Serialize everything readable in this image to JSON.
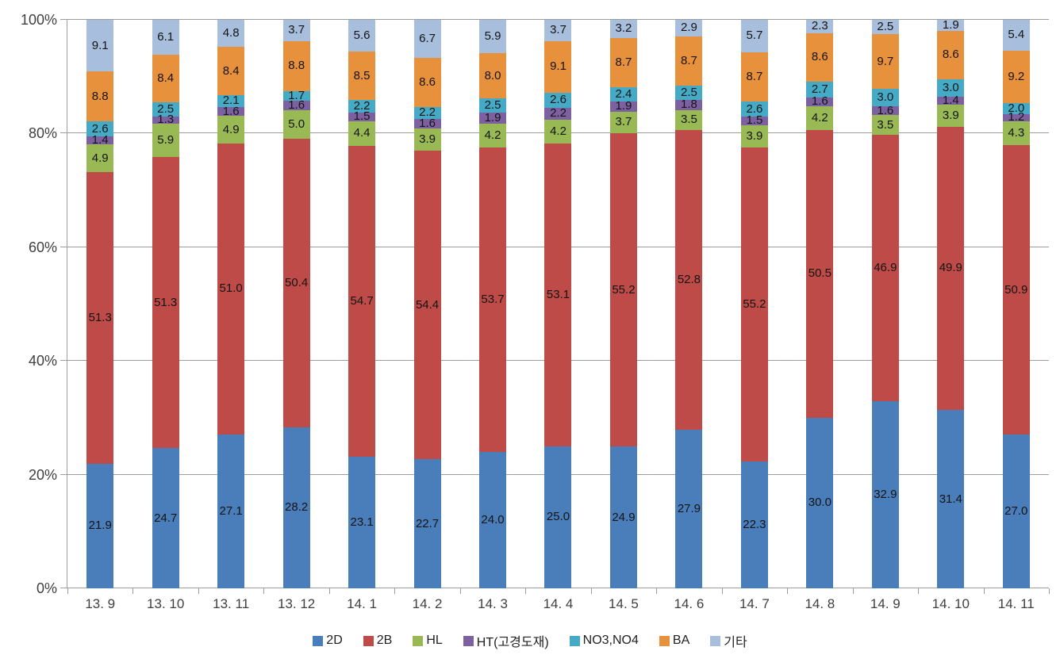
{
  "chart_data": {
    "type": "bar",
    "variant": "stacked-100-percent",
    "title": "",
    "xlabel": "",
    "ylabel": "",
    "ylim": [
      0,
      100
    ],
    "grid": true,
    "legend_position": "bottom",
    "colors": {
      "axis_line": "#9c9c9c",
      "axis_text": "#3f3f3f",
      "data_label_text": "#141414"
    },
    "y_axis_ticks": [
      {
        "label": "0%",
        "value": 0
      },
      {
        "label": "20%",
        "value": 20
      },
      {
        "label": "40%",
        "value": 40
      },
      {
        "label": "60%",
        "value": 60
      },
      {
        "label": "80%",
        "value": 80
      },
      {
        "label": "100%",
        "value": 100
      }
    ],
    "categories": [
      "13. 9",
      "13. 10",
      "13. 11",
      "13. 12",
      "14. 1",
      "14. 2",
      "14. 3",
      "14. 4",
      "14. 5",
      "14. 6",
      "14. 7",
      "14. 8",
      "14. 9",
      "14. 10",
      "14. 11"
    ],
    "series": [
      {
        "name": "2D",
        "color": "#4A7EBB",
        "values": [
          "21.9",
          "24.7",
          "27.1",
          "28.2",
          "23.1",
          "22.7",
          "24.0",
          "25.0",
          "24.9",
          "27.9",
          "22.3",
          "30.0",
          "32.9",
          "31.4",
          "27.0"
        ]
      },
      {
        "name": "2B",
        "color": "#BE4B48",
        "values": [
          "51.3",
          "51.3",
          "51.0",
          "50.4",
          "54.7",
          "54.4",
          "53.7",
          "53.1",
          "55.2",
          "52.8",
          "55.2",
          "50.5",
          "46.9",
          "49.9",
          "50.9"
        ]
      },
      {
        "name": "HL",
        "color": "#98B954",
        "values": [
          "4.9",
          "5.9",
          "4.9",
          "5.0",
          "4.4",
          "3.9",
          "4.2",
          "4.2",
          "3.7",
          "3.5",
          "3.9",
          "4.2",
          "3.5",
          "3.9",
          "4.3"
        ]
      },
      {
        "name": "HT(고경도재)",
        "color": "#7D60A0",
        "values": [
          "1.4",
          "1.3",
          "1.6",
          "1.6",
          "1.5",
          "1.6",
          "1.9",
          "2.2",
          "1.9",
          "1.8",
          "1.5",
          "1.6",
          "1.6",
          "1.4",
          "1.2"
        ]
      },
      {
        "name": "NO3,NO4",
        "color": "#45AAC5",
        "values": [
          "2.6",
          "2.5",
          "2.1",
          "1.7",
          "2.2",
          "2.2",
          "2.5",
          "2.6",
          "2.4",
          "2.5",
          "2.6",
          "2.7",
          "3.0",
          "3.0",
          "2.0"
        ]
      },
      {
        "name": "BA",
        "color": "#E8913D",
        "values": [
          "8.8",
          "8.4",
          "8.4",
          "8.8",
          "8.5",
          "8.6",
          "8.0",
          "9.1",
          "8.7",
          "8.7",
          "8.7",
          "8.6",
          "9.7",
          "8.6",
          "9.2"
        ]
      },
      {
        "name": "기타",
        "color": "#A8BEDD",
        "values": [
          "9.1",
          "6.1",
          "4.8",
          "3.7",
          "5.6",
          "6.7",
          "5.9",
          "3.7",
          "3.2",
          "2.9",
          "5.7",
          "2.3",
          "2.5",
          "1.9",
          "5.4"
        ]
      }
    ]
  }
}
